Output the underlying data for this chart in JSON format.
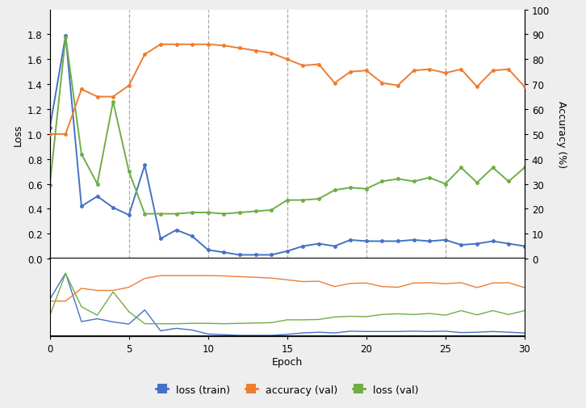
{
  "epochs": [
    0,
    1,
    2,
    3,
    4,
    5,
    6,
    7,
    8,
    9,
    10,
    11,
    12,
    13,
    14,
    15,
    16,
    17,
    18,
    19,
    20,
    21,
    22,
    23,
    24,
    25,
    26,
    27,
    28,
    29,
    30
  ],
  "loss_train": [
    1.05,
    1.79,
    0.42,
    0.5,
    0.41,
    0.35,
    0.75,
    0.16,
    0.23,
    0.18,
    0.07,
    0.05,
    0.03,
    0.03,
    0.03,
    0.06,
    0.1,
    0.12,
    0.1,
    0.15,
    0.14,
    0.14,
    0.14,
    0.15,
    0.14,
    0.15,
    0.11,
    0.12,
    0.14,
    0.12,
    0.1
  ],
  "accuracy_val_pct": [
    50,
    50,
    68,
    65,
    65,
    69.5,
    82,
    86,
    86,
    86,
    86,
    85.5,
    84.5,
    83.5,
    82.5,
    80,
    77.5,
    78,
    70.5,
    75,
    75.5,
    70.5,
    69.5,
    75.5,
    76,
    74.5,
    76,
    69,
    75.5,
    76,
    69
  ],
  "loss_val": [
    0.59,
    1.78,
    0.84,
    0.6,
    1.26,
    0.7,
    0.36,
    0.36,
    0.36,
    0.37,
    0.37,
    0.36,
    0.37,
    0.38,
    0.39,
    0.47,
    0.47,
    0.48,
    0.55,
    0.57,
    0.56,
    0.62,
    0.64,
    0.62,
    0.65,
    0.6,
    0.73,
    0.61,
    0.73,
    0.62,
    0.73
  ],
  "color_train": "#4472C4",
  "color_accuracy": "#ED7D31",
  "color_loss_val": "#70AD47",
  "bg_color": "#eeeeee",
  "plot_bg": "#ffffff",
  "xlabel": "Epoch",
  "ylabel_left": "Loss",
  "ylabel_right": "Accuracy (%)",
  "ylim_main": [
    0.0,
    2.0
  ],
  "ylim_right": [
    0,
    100
  ],
  "yticks_right": [
    0,
    10,
    20,
    30,
    40,
    50,
    60,
    70,
    80,
    90,
    100
  ],
  "yticks_left": [
    0.0,
    0.2,
    0.4,
    0.6,
    0.8,
    1.0,
    1.2,
    1.4,
    1.6,
    1.8
  ],
  "xlim": [
    0,
    30
  ],
  "xticks": [
    0,
    5,
    10,
    15,
    20,
    25,
    30
  ],
  "vlines": [
    5,
    10,
    15,
    20,
    25,
    30
  ],
  "legend_labels": [
    "loss (train)",
    "accuracy (val)",
    "loss (val)"
  ]
}
